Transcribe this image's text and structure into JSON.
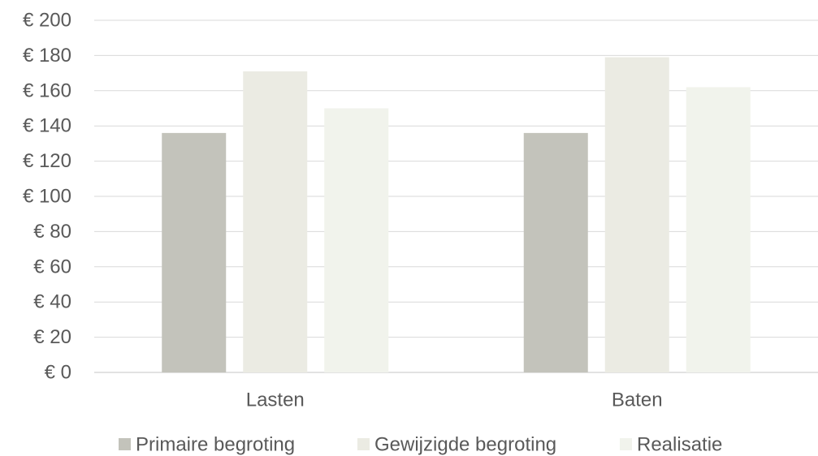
{
  "chart_data": {
    "type": "bar",
    "categories": [
      "Lasten",
      "Baten"
    ],
    "series": [
      {
        "name": "Primaire begroting",
        "values": [
          136,
          136
        ],
        "color": "#c3c3bb"
      },
      {
        "name": "Gewijzigde begroting",
        "values": [
          171,
          179
        ],
        "color": "#ebebe3"
      },
      {
        "name": "Realisatie",
        "values": [
          150,
          162
        ],
        "color": "#f1f3ec"
      }
    ],
    "y_ticks": [
      "€ 0",
      "€ 20",
      "€ 40",
      "€ 60",
      "€ 80",
      "€ 100",
      "€ 120",
      "€ 140",
      "€ 160",
      "€ 180",
      "€ 200"
    ],
    "ylim": [
      0,
      200
    ],
    "grid": true,
    "legend_position": "bottom",
    "colors": {
      "grid": "#d9d9d9",
      "text": "#595959"
    }
  }
}
